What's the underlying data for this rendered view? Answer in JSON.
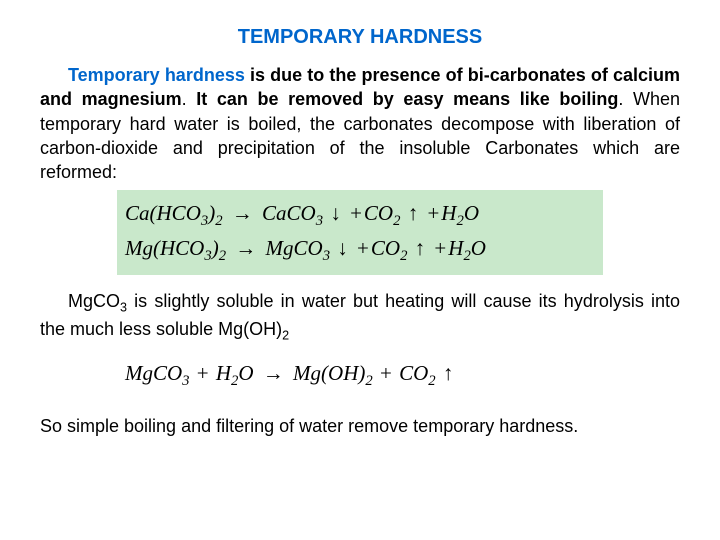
{
  "title": "TEMPORARY HARDNESS",
  "colors": {
    "accent": "#0066cc",
    "highlight_bg": "#c9e8cb",
    "text": "#000000",
    "page_bg": "#ffffff"
  },
  "typography": {
    "body_font": "Arial",
    "body_size_pt": 14,
    "title_size_pt": 16,
    "equation_font": "Times New Roman",
    "equation_style": "italic",
    "equation_size_pt": 16
  },
  "paragraph1": {
    "lead": "Temporary hardness",
    "bold_tail": " is due to the presence of bi-carbonates of calcium and magnesium",
    "sep": ". ",
    "bold2": "It can be removed by easy means like boiling",
    "rest": ". When temporary hard water is boiled, the carbonates decompose with liberation of carbon-dioxide and precipitation of the insoluble Carbonates which are reformed:"
  },
  "equations1": {
    "highlight": true,
    "rows": [
      {
        "lhs_base": "Ca",
        "lhs_group": "HCO",
        "lhs_group_sub": "3",
        "lhs_outer_sub": "2",
        "rhs1_base": "CaCO",
        "rhs1_sub": "3",
        "rhs1_arrow": "↓",
        "rhs2_base": "CO",
        "rhs2_sub": "2",
        "rhs2_arrow": "↑",
        "rhs3_base": "H",
        "rhs3_sub": "2",
        "rhs3_tail": "O"
      },
      {
        "lhs_base": "Mg",
        "lhs_group": "HCO",
        "lhs_group_sub": "3",
        "lhs_outer_sub": "2",
        "rhs1_base": "MgCO",
        "rhs1_sub": "3",
        "rhs1_arrow": "↓",
        "rhs2_base": "CO",
        "rhs2_sub": "2",
        "rhs2_arrow": "↑",
        "rhs3_base": "H",
        "rhs3_sub": "2",
        "rhs3_tail": "O"
      }
    ]
  },
  "paragraph2": {
    "pre": "MgCO",
    "pre_sub": "3",
    "mid": " is slightly soluble in water but heating will cause its hydrolysis into the much less soluble Mg(OH)",
    "mid_sub": "2"
  },
  "equations2": {
    "highlight": false,
    "row": {
      "l1_base": "MgCO",
      "l1_sub": "3",
      "l2_base": "H",
      "l2_sub": "2",
      "l2_tail": "O",
      "r1_base": "Mg",
      "r1_group": "OH",
      "r1_outer_sub": "2",
      "r2_base": "CO",
      "r2_sub": "2",
      "r2_arrow": "↑"
    }
  },
  "paragraph3": "So simple boiling and filtering of water remove temporary hardness.",
  "symbols": {
    "to": "→",
    "down": "↓",
    "up": "↑",
    "plus": "+"
  }
}
